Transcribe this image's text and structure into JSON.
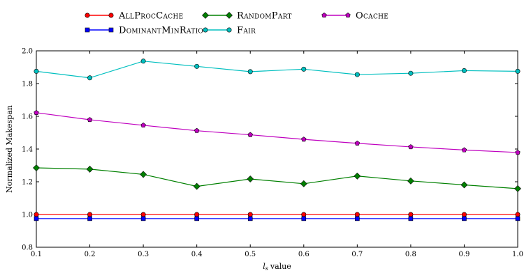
{
  "chart_data": {
    "type": "line",
    "xlabel": "value",
    "xlabel_symbol": "l",
    "xlabel_subscript": "s",
    "ylabel": "Normalized Makespan",
    "xlim": [
      0.1,
      1.0
    ],
    "ylim": [
      0.8,
      2.0
    ],
    "x": [
      0.1,
      0.2,
      0.3,
      0.4,
      0.5,
      0.6,
      0.7,
      0.8,
      0.9,
      1.0
    ],
    "x_ticks": [
      "0.1",
      "0.2",
      "0.3",
      "0.4",
      "0.5",
      "0.6",
      "0.7",
      "0.8",
      "0.9",
      "1.0"
    ],
    "y_ticks": [
      "0.8",
      "1.0",
      "1.2",
      "1.4",
      "1.6",
      "1.8",
      "2.0"
    ],
    "y_tick_values": [
      0.8,
      1.0,
      1.2,
      1.4,
      1.6,
      1.8,
      2.0
    ],
    "grid": false,
    "legend_position": "top-center",
    "series": [
      {
        "name": "AllProcCache",
        "color": "#ff0000",
        "marker": "circle",
        "values": [
          1.0,
          1.0,
          1.0,
          1.0,
          1.0,
          1.0,
          1.0,
          1.0,
          1.0,
          1.0
        ]
      },
      {
        "name": "DominantMinRatio",
        "color": "#0000ff",
        "marker": "square",
        "values": [
          0.975,
          0.975,
          0.975,
          0.975,
          0.975,
          0.975,
          0.975,
          0.975,
          0.975,
          0.975
        ]
      },
      {
        "name": "RandomPart",
        "color": "#008000",
        "marker": "diamond",
        "values": [
          1.285,
          1.277,
          1.245,
          1.172,
          1.217,
          1.188,
          1.235,
          1.205,
          1.181,
          1.158
        ]
      },
      {
        "name": "Fair",
        "color": "#00bfbf",
        "marker": "circle",
        "values": [
          1.875,
          1.835,
          1.937,
          1.905,
          1.873,
          1.888,
          1.855,
          1.863,
          1.879,
          1.875
        ]
      },
      {
        "name": "Ocache",
        "color": "#bf00bf",
        "marker": "pentagon",
        "values": [
          1.622,
          1.579,
          1.545,
          1.512,
          1.487,
          1.459,
          1.435,
          1.413,
          1.394,
          1.379
        ]
      }
    ]
  }
}
